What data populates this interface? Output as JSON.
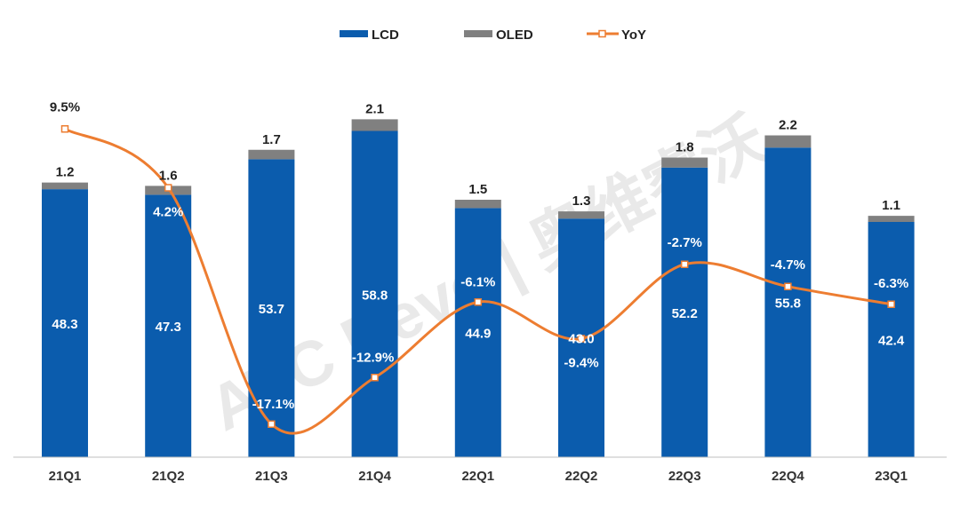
{
  "chart_data": {
    "type": "bar",
    "stacked": true,
    "categories": [
      "21Q1",
      "21Q2",
      "21Q3",
      "21Q4",
      "22Q1",
      "22Q2",
      "22Q3",
      "22Q4",
      "23Q1"
    ],
    "series": [
      {
        "name": "LCD",
        "type": "bar",
        "color": "#0b5cad",
        "values": [
          48.3,
          47.3,
          53.7,
          58.8,
          44.9,
          43.0,
          52.2,
          55.8,
          42.4
        ],
        "labels": [
          "48.3",
          "47.3",
          "53.7",
          "58.8",
          "44.9",
          "43.0",
          "52.2",
          "55.8",
          "42.4"
        ]
      },
      {
        "name": "OLED",
        "type": "bar",
        "color": "#808080",
        "values": [
          1.2,
          1.6,
          1.7,
          2.1,
          1.5,
          1.3,
          1.8,
          2.2,
          1.1
        ],
        "labels": [
          "1.2",
          "1.6",
          "1.7",
          "2.1",
          "1.5",
          "1.3",
          "1.8",
          "2.2",
          "1.1"
        ]
      },
      {
        "name": "YoY",
        "type": "line",
        "color": "#ed7d31",
        "unit": "%",
        "values": [
          9.5,
          4.2,
          -17.1,
          -12.9,
          -6.1,
          -9.4,
          -2.7,
          -4.7,
          -6.3
        ],
        "labels": [
          "9.5%",
          "4.2%",
          "-17.1%",
          "-12.9%",
          "-6.1%",
          "-9.4%",
          "-2.7%",
          "-4.7%",
          "-6.3%"
        ]
      }
    ],
    "legend": {
      "position": "top-center",
      "items": [
        "LCD",
        "OLED",
        "YoY"
      ]
    },
    "grid": false,
    "title": "",
    "xlabel": "",
    "ylabel": "",
    "watermark": "AVC Revo 奥维睿沃"
  }
}
